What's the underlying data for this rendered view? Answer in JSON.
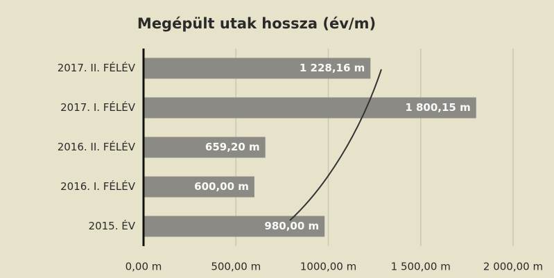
{
  "chart_data": {
    "type": "barh",
    "title": "Megépült utak hossza (év/m)",
    "categories": [
      "2017. II. FÉLÉV",
      "2017. I. FÉLÉV",
      "2016. II. FÉLÉV",
      "2016. I. FÉLÉV",
      "2015. ÉV"
    ],
    "values": [
      1228.16,
      1800.15,
      659.2,
      600,
      980
    ],
    "value_labels": [
      "1 228,16 m",
      "1 800,15 m",
      "659,20 m",
      "600,00 m",
      "980,00 m"
    ],
    "color": "#8b8a84",
    "xlim": [
      0,
      2000
    ],
    "xticks": [
      {
        "value": 0,
        "label": "0,00 m"
      },
      {
        "value": 500,
        "label": "500,00 m"
      },
      {
        "value": 1000,
        "label": "1000,00 m"
      },
      {
        "value": 1500,
        "label": "1 500,00 m"
      },
      {
        "value": 2000,
        "label": "2 000,00 m"
      }
    ],
    "grid": true
  }
}
